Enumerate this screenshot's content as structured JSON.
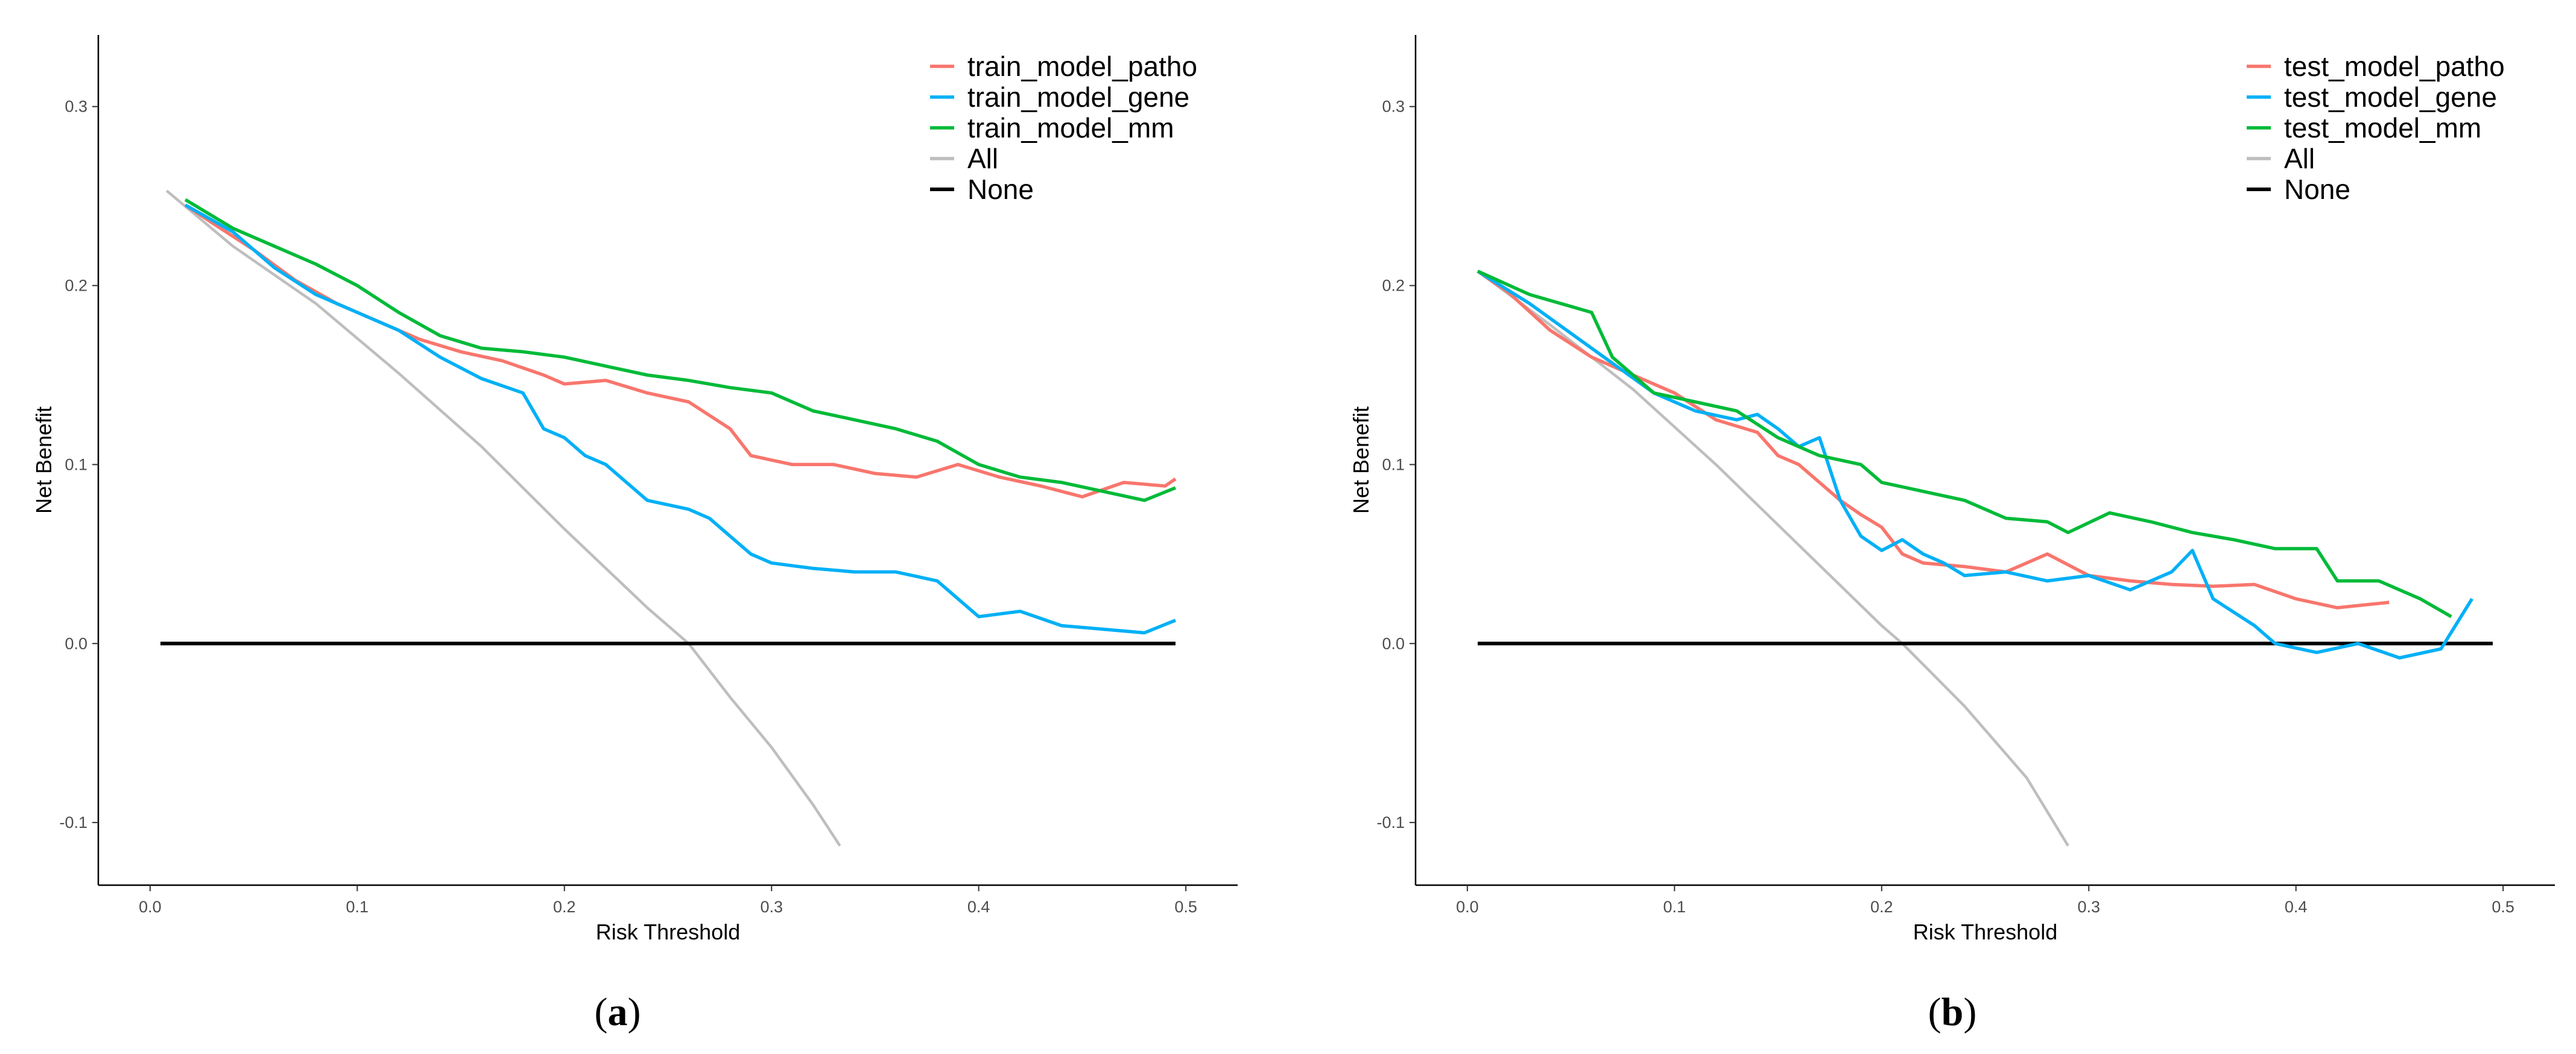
{
  "chart_data": [
    {
      "type": "line",
      "panel_label": "a",
      "xlabel": "Risk Threshold",
      "ylabel": "Net Benefit",
      "xlim": [
        -0.025,
        0.525
      ],
      "ylim": [
        -0.135,
        0.34
      ],
      "xticks": [
        0.0,
        0.1,
        0.2,
        0.3,
        0.4,
        0.5
      ],
      "xtick_labels": [
        "0.0",
        "0.1",
        "0.2",
        "0.3",
        "0.4",
        "0.5"
      ],
      "yticks": [
        -0.1,
        0.0,
        0.1,
        0.2,
        0.3
      ],
      "ytick_labels": [
        "-0.1",
        "0.0",
        "0.1",
        "0.2",
        "0.3"
      ],
      "grid": false,
      "legend_position": "top-right",
      "series": [
        {
          "name": "train_model_patho",
          "color": "#F8766D",
          "x": [
            0.017,
            0.03,
            0.05,
            0.07,
            0.09,
            0.11,
            0.13,
            0.15,
            0.17,
            0.19,
            0.2,
            0.22,
            0.24,
            0.26,
            0.28,
            0.29,
            0.31,
            0.33,
            0.35,
            0.37,
            0.39,
            0.41,
            0.43,
            0.45,
            0.47,
            0.49,
            0.495
          ],
          "y": [
            0.245,
            0.235,
            0.22,
            0.203,
            0.19,
            0.18,
            0.17,
            0.163,
            0.158,
            0.15,
            0.145,
            0.147,
            0.14,
            0.135,
            0.12,
            0.105,
            0.1,
            0.1,
            0.095,
            0.093,
            0.1,
            0.093,
            0.088,
            0.082,
            0.09,
            0.088,
            0.092
          ]
        },
        {
          "name": "train_model_gene",
          "color": "#00B0F6",
          "x": [
            0.017,
            0.04,
            0.06,
            0.08,
            0.1,
            0.12,
            0.14,
            0.16,
            0.18,
            0.19,
            0.2,
            0.21,
            0.22,
            0.23,
            0.24,
            0.26,
            0.27,
            0.28,
            0.29,
            0.3,
            0.32,
            0.34,
            0.36,
            0.38,
            0.39,
            0.4,
            0.42,
            0.44,
            0.46,
            0.48,
            0.495
          ],
          "y": [
            0.245,
            0.23,
            0.21,
            0.195,
            0.185,
            0.175,
            0.16,
            0.148,
            0.14,
            0.12,
            0.115,
            0.105,
            0.1,
            0.09,
            0.08,
            0.075,
            0.07,
            0.06,
            0.05,
            0.045,
            0.042,
            0.04,
            0.04,
            0.035,
            0.025,
            0.015,
            0.018,
            0.01,
            0.008,
            0.006,
            0.013
          ]
        },
        {
          "name": "train_model_mm",
          "color": "#00BA38",
          "x": [
            0.017,
            0.04,
            0.06,
            0.08,
            0.1,
            0.12,
            0.14,
            0.16,
            0.18,
            0.2,
            0.22,
            0.24,
            0.26,
            0.28,
            0.3,
            0.32,
            0.34,
            0.36,
            0.38,
            0.4,
            0.42,
            0.44,
            0.46,
            0.48,
            0.495
          ],
          "y": [
            0.248,
            0.232,
            0.222,
            0.212,
            0.2,
            0.185,
            0.172,
            0.165,
            0.163,
            0.16,
            0.155,
            0.15,
            0.147,
            0.143,
            0.14,
            0.13,
            0.125,
            0.12,
            0.113,
            0.1,
            0.093,
            0.09,
            0.085,
            0.08,
            0.087
          ]
        },
        {
          "name": "All",
          "color": "#BEBEBE",
          "x": [
            0.008,
            0.04,
            0.08,
            0.12,
            0.16,
            0.2,
            0.24,
            0.26,
            0.28,
            0.3,
            0.32,
            0.333
          ],
          "y": [
            0.253,
            0.222,
            0.19,
            0.151,
            0.11,
            0.064,
            0.02,
            0.0,
            -0.03,
            -0.058,
            -0.09,
            -0.113
          ]
        },
        {
          "name": "None",
          "color": "#000000",
          "x": [
            0.005,
            0.495
          ],
          "y": [
            0.0,
            0.0
          ]
        }
      ]
    },
    {
      "type": "line",
      "panel_label": "b",
      "xlabel": "Risk Threshold",
      "ylabel": "Net Benefit",
      "xlim": [
        -0.025,
        0.525
      ],
      "ylim": [
        -0.135,
        0.34
      ],
      "xticks": [
        0.0,
        0.1,
        0.2,
        0.3,
        0.4,
        0.5
      ],
      "xtick_labels": [
        "0.0",
        "0.1",
        "0.2",
        "0.3",
        "0.4",
        "0.5"
      ],
      "yticks": [
        -0.1,
        0.0,
        0.1,
        0.2,
        0.3
      ],
      "ytick_labels": [
        "-0.1",
        "0.0",
        "0.1",
        "0.2",
        "0.3"
      ],
      "grid": false,
      "legend_position": "top-right",
      "series": [
        {
          "name": "test_model_patho",
          "color": "#F8766D",
          "x": [
            0.005,
            0.02,
            0.04,
            0.06,
            0.08,
            0.1,
            0.12,
            0.14,
            0.15,
            0.16,
            0.17,
            0.18,
            0.19,
            0.2,
            0.21,
            0.22,
            0.24,
            0.26,
            0.28,
            0.3,
            0.32,
            0.34,
            0.36,
            0.38,
            0.4,
            0.42,
            0.445
          ],
          "y": [
            0.208,
            0.196,
            0.175,
            0.16,
            0.15,
            0.14,
            0.125,
            0.118,
            0.105,
            0.1,
            0.09,
            0.08,
            0.072,
            0.065,
            0.05,
            0.045,
            0.043,
            0.04,
            0.05,
            0.038,
            0.035,
            0.033,
            0.032,
            0.033,
            0.025,
            0.02,
            0.023
          ]
        },
        {
          "name": "test_model_gene",
          "color": "#00B0F6",
          "x": [
            0.005,
            0.03,
            0.06,
            0.09,
            0.11,
            0.13,
            0.14,
            0.15,
            0.16,
            0.17,
            0.18,
            0.19,
            0.2,
            0.21,
            0.22,
            0.23,
            0.24,
            0.26,
            0.28,
            0.3,
            0.32,
            0.34,
            0.35,
            0.36,
            0.38,
            0.39,
            0.41,
            0.43,
            0.45,
            0.47,
            0.485
          ],
          "y": [
            0.208,
            0.19,
            0.165,
            0.14,
            0.13,
            0.125,
            0.128,
            0.12,
            0.11,
            0.115,
            0.08,
            0.06,
            0.052,
            0.058,
            0.05,
            0.045,
            0.038,
            0.04,
            0.035,
            0.038,
            0.03,
            0.04,
            0.052,
            0.025,
            0.01,
            0.0,
            -0.005,
            0.0,
            -0.008,
            -0.003,
            0.025
          ]
        },
        {
          "name": "test_model_mm",
          "color": "#00BA38",
          "x": [
            0.005,
            0.03,
            0.06,
            0.07,
            0.09,
            0.11,
            0.13,
            0.15,
            0.17,
            0.19,
            0.2,
            0.22,
            0.24,
            0.26,
            0.28,
            0.29,
            0.31,
            0.33,
            0.35,
            0.37,
            0.39,
            0.41,
            0.42,
            0.44,
            0.46,
            0.475
          ],
          "y": [
            0.208,
            0.195,
            0.185,
            0.16,
            0.14,
            0.135,
            0.13,
            0.115,
            0.105,
            0.1,
            0.09,
            0.085,
            0.08,
            0.07,
            0.068,
            0.062,
            0.073,
            0.068,
            0.062,
            0.058,
            0.053,
            0.053,
            0.035,
            0.035,
            0.025,
            0.015
          ]
        },
        {
          "name": "All",
          "color": "#BEBEBE",
          "x": [
            0.005,
            0.04,
            0.08,
            0.12,
            0.16,
            0.2,
            0.21,
            0.24,
            0.27,
            0.29
          ],
          "y": [
            0.208,
            0.178,
            0.142,
            0.1,
            0.055,
            0.01,
            0.0,
            -0.035,
            -0.075,
            -0.113
          ]
        },
        {
          "name": "None",
          "color": "#000000",
          "x": [
            0.005,
            0.495
          ],
          "y": [
            0.0,
            0.0
          ]
        }
      ]
    }
  ]
}
